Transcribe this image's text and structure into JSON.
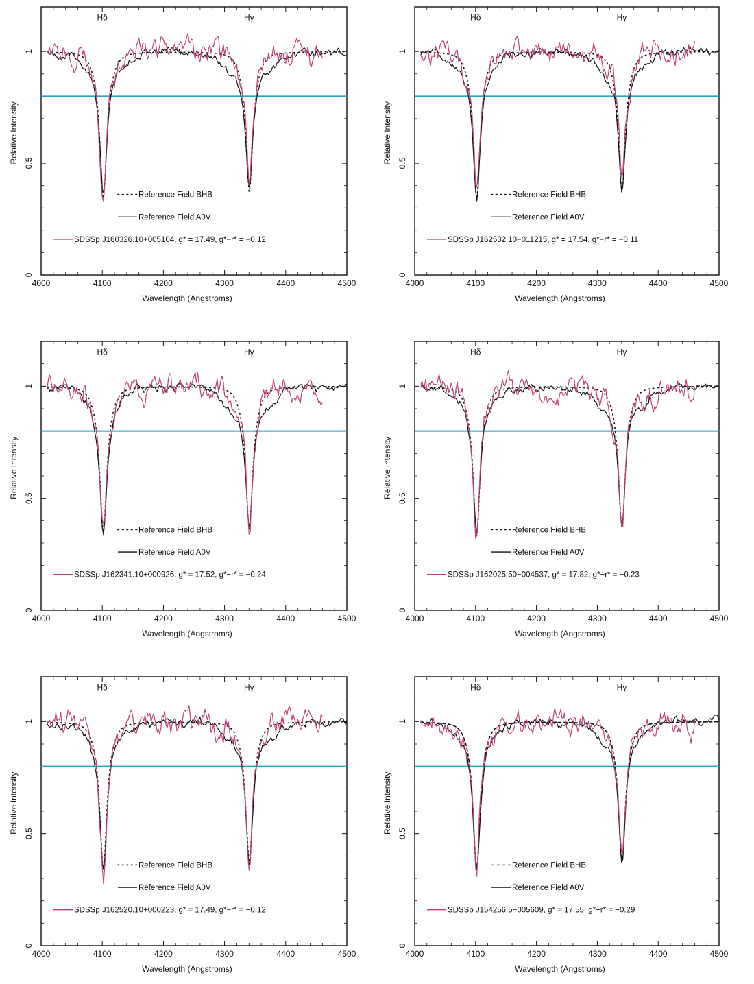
{
  "figure": {
    "xlabel": "Wavelength (Angstroms)",
    "ylabel": "Relative Intensity",
    "xlim": [
      4000,
      4500
    ],
    "ylim": [
      0,
      1.2
    ],
    "xticks": [
      4000,
      4100,
      4200,
      4300,
      4400,
      4500
    ],
    "yticks": [
      0,
      0.5,
      1
    ],
    "ytick_labels": [
      "0",
      "0.5",
      "1"
    ],
    "line_labels": {
      "hdelta": "Hδ",
      "hgamma": "Hγ"
    },
    "reference_threshold": 0.8,
    "colors": {
      "bhb": "#111111",
      "aov": "#111111",
      "sdss": "#c0407a",
      "threshold": "#2a9fbf"
    }
  },
  "chart_data": [
    {
      "type": "line",
      "panel": "top-left",
      "xlabel": "Wavelength (Angstroms)",
      "ylabel": "Relative Intensity",
      "xlim": [
        4000,
        4500
      ],
      "ylim": [
        0,
        1.2
      ],
      "legend": [
        {
          "style": "dotted",
          "label": "Reference Field BHB"
        },
        {
          "style": "solid",
          "label": "Reference Field A0V"
        },
        {
          "style": "colored",
          "label": "SDSSp J160326.10+005104, g* = 17.49, g*−r* = −0.12"
        }
      ],
      "series": [
        {
          "name": "Reference Field BHB",
          "kind": "bhb",
          "min_hd": 0.34,
          "min_hg": 0.37
        },
        {
          "name": "Reference Field A0V",
          "kind": "aov",
          "min_hd": 0.35,
          "min_hg": 0.38
        },
        {
          "name": "SDSSp J160326.10+005104, g* = 17.49, g*−r* = −0.12",
          "kind": "sdss",
          "min_hd": 0.35,
          "min_hg": 0.39
        }
      ]
    },
    {
      "type": "line",
      "panel": "top-right",
      "xlabel": "Wavelength (Angstroms)",
      "ylabel": "Relative Intensity",
      "xlim": [
        4000,
        4500
      ],
      "ylim": [
        0,
        1.2
      ],
      "legend": [
        {
          "style": "dotted",
          "label": "Reference Field BHB"
        },
        {
          "style": "solid",
          "label": "Reference Field A0V"
        },
        {
          "style": "colored",
          "label": "SDSSp J162532.10−011215, g* = 17.54, g*−r* = −0.11"
        }
      ],
      "series": [
        {
          "name": "Reference Field BHB",
          "kind": "bhb",
          "min_hd": 0.34,
          "min_hg": 0.37
        },
        {
          "name": "Reference Field A0V",
          "kind": "aov",
          "min_hd": 0.34,
          "min_hg": 0.37
        },
        {
          "name": "SDSSp J162532.10−011215, g* = 17.54, g*−r* = −0.11",
          "kind": "sdss",
          "min_hd": 0.35,
          "min_hg": 0.38
        }
      ]
    },
    {
      "type": "line",
      "panel": "middle-left",
      "xlabel": "Wavelength (Angstroms)",
      "ylabel": "Relative Intensity",
      "xlim": [
        4000,
        4500
      ],
      "ylim": [
        0,
        1.2
      ],
      "legend": [
        {
          "style": "dotted",
          "label": "Reference Field BHB"
        },
        {
          "style": "solid",
          "label": "Reference Field A0V"
        },
        {
          "style": "colored",
          "label": "SDSSp J162341.10+000926, g* = 17.52, g*−r* = −0.24"
        }
      ],
      "series": [
        {
          "name": "Reference Field BHB",
          "kind": "bhb",
          "min_hd": 0.35,
          "min_hg": 0.36
        },
        {
          "name": "Reference Field A0V",
          "kind": "aov",
          "min_hd": 0.35,
          "min_hg": 0.36
        },
        {
          "name": "SDSSp J162341.10+000926, g* = 17.52, g*−r* = −0.24",
          "kind": "sdss",
          "min_hd": 0.36,
          "min_hg": 0.37
        }
      ]
    },
    {
      "type": "line",
      "panel": "middle-right",
      "xlabel": "Wavelength (Angstroms)",
      "ylabel": "Relative Intensity",
      "xlim": [
        4000,
        4500
      ],
      "ylim": [
        0,
        1.2
      ],
      "legend": [
        {
          "style": "dotted",
          "label": "Reference Field BHB"
        },
        {
          "style": "solid",
          "label": "Reference Field A0V"
        },
        {
          "style": "colored",
          "label": "SDSSp J162025.50−004537, g* = 17.82, g*−r* = −0.23"
        }
      ],
      "series": [
        {
          "name": "Reference Field BHB",
          "kind": "bhb",
          "min_hd": 0.33,
          "min_hg": 0.37
        },
        {
          "name": "Reference Field A0V",
          "kind": "aov",
          "min_hd": 0.34,
          "min_hg": 0.37
        },
        {
          "name": "SDSSp J162025.50−004537, g* = 17.82, g*−r* = −0.23",
          "kind": "sdss",
          "min_hd": 0.32,
          "min_hg": 0.38
        }
      ]
    },
    {
      "type": "line",
      "panel": "bottom-left",
      "xlabel": "Wavelength (Angstroms)",
      "ylabel": "Relative Intensity",
      "xlim": [
        4000,
        4500
      ],
      "ylim": [
        0,
        1.2
      ],
      "legend": [
        {
          "style": "dotted",
          "label": "Reference Field BHB"
        },
        {
          "style": "solid",
          "label": "Reference Field A0V"
        },
        {
          "style": "colored",
          "label": "SDSSp J162520.10+000223, g* = 17.49, g*−r* = −0.12"
        }
      ],
      "series": [
        {
          "name": "Reference Field BHB",
          "kind": "bhb",
          "min_hd": 0.34,
          "min_hg": 0.37
        },
        {
          "name": "Reference Field A0V",
          "kind": "aov",
          "min_hd": 0.34,
          "min_hg": 0.38
        },
        {
          "name": "SDSSp J162520.10+000223, g* = 17.49, g*−r* = −0.12",
          "kind": "sdss",
          "min_hd": 0.33,
          "min_hg": 0.37
        }
      ]
    },
    {
      "type": "line",
      "panel": "bottom-right",
      "xlabel": "Wavelength (Angstroms)",
      "ylabel": "Relative Intensity",
      "xlim": [
        4000,
        4500
      ],
      "ylim": [
        0,
        1.2
      ],
      "legend": [
        {
          "style": "dashed",
          "label": "Reference Field BHB"
        },
        {
          "style": "solid",
          "label": "Reference Field A0V"
        },
        {
          "style": "colored",
          "label": "SDSSp J154256.5−005609, g* = 17.55, g*−r* = −0.29"
        }
      ],
      "series": [
        {
          "name": "Reference Field BHB",
          "kind": "bhb",
          "min_hd": 0.34,
          "min_hg": 0.37
        },
        {
          "name": "Reference Field A0V",
          "kind": "aov",
          "min_hd": 0.34,
          "min_hg": 0.37
        },
        {
          "name": "SDSSp J154256.5−005609, g* = 17.55, g*−r* = −0.29",
          "kind": "sdss",
          "min_hd": 0.35,
          "min_hg": 0.37
        }
      ]
    }
  ]
}
